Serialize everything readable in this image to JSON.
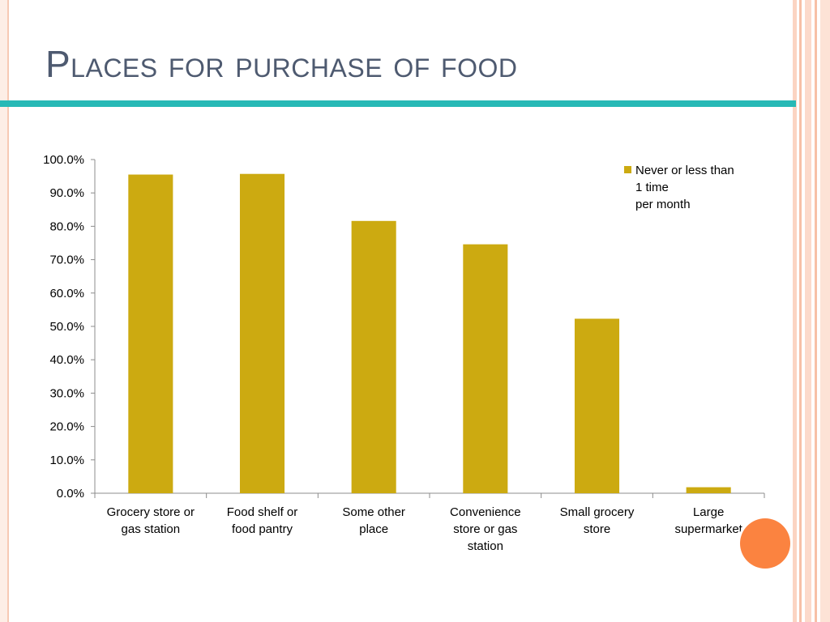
{
  "slide": {
    "title": "Places for purchase of food"
  },
  "colors": {
    "bar": "#ccaa11",
    "accent_teal": "#27b9b6",
    "title": "#4e5a70",
    "orange_dot": "#fb8340"
  },
  "chart_data": {
    "type": "bar",
    "categories": [
      [
        "Grocery store or",
        "gas station"
      ],
      [
        "Food shelf or",
        "food pantry"
      ],
      [
        "Some other",
        "place"
      ],
      [
        "Convenience",
        "store or gas",
        "station"
      ],
      [
        "Small grocery",
        "store"
      ],
      [
        "Large",
        "supermarket"
      ]
    ],
    "series": [
      {
        "name": "Never or less than 1 time per month",
        "legend_lines": [
          "Never or less than",
          "1 time",
          "per month"
        ],
        "values": [
          95.5,
          95.7,
          81.6,
          74.6,
          52.3,
          1.8
        ]
      }
    ],
    "yticks": [
      "0.0%",
      "10.0%",
      "20.0%",
      "30.0%",
      "40.0%",
      "50.0%",
      "60.0%",
      "70.0%",
      "80.0%",
      "90.0%",
      "100.0%"
    ],
    "ylim": [
      0,
      100
    ],
    "legend": "top-right",
    "grid": false
  }
}
